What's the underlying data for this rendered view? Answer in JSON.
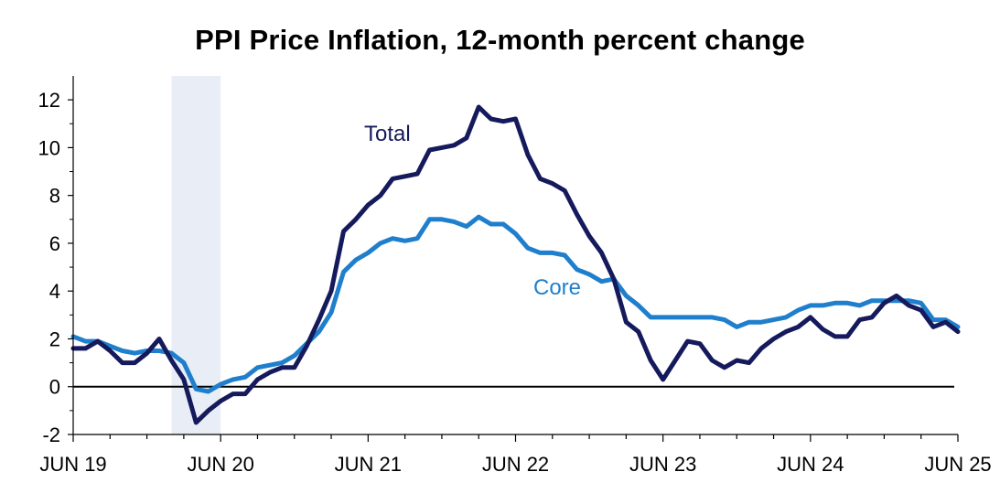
{
  "chart_data": {
    "type": "line",
    "title": "PPI Price Inflation, 12-month percent change",
    "xlabel": "",
    "ylabel": "",
    "ylim": [
      -2,
      13
    ],
    "yticks": [
      -2,
      0,
      2,
      4,
      6,
      8,
      10,
      12
    ],
    "x_start": "2019-06",
    "x_end": "2025-06",
    "xtick_labels": [
      "JUN 19",
      "JUN 20",
      "JUN 21",
      "JUN 22",
      "JUN 23",
      "JUN 24",
      "JUN 25"
    ],
    "recession_shading": {
      "start_index": 8,
      "end_index": 12
    },
    "colors": {
      "Total": "#151a5c",
      "Core": "#1f7fcc",
      "recession": "#e8edf6",
      "zero_line": "#000000"
    },
    "series": [
      {
        "name": "Total",
        "label": "Total",
        "values": [
          1.6,
          1.6,
          1.9,
          1.5,
          1.0,
          1.0,
          1.4,
          2.0,
          1.1,
          0.3,
          -1.5,
          -1.0,
          -0.6,
          -0.3,
          -0.3,
          0.3,
          0.6,
          0.8,
          0.8,
          1.7,
          2.8,
          4.0,
          6.5,
          7.0,
          7.6,
          8.0,
          8.7,
          8.8,
          8.9,
          9.9,
          10.0,
          10.1,
          10.4,
          11.7,
          11.2,
          11.1,
          11.2,
          9.7,
          8.7,
          8.5,
          8.2,
          7.2,
          6.3,
          5.6,
          4.5,
          2.7,
          2.3,
          1.1,
          0.3,
          1.1,
          1.9,
          1.8,
          1.1,
          0.8,
          1.1,
          1.0,
          1.6,
          2.0,
          2.3,
          2.5,
          2.9,
          2.4,
          2.1,
          2.1,
          2.8,
          2.9,
          3.5,
          3.8,
          3.4,
          3.2,
          2.5,
          2.7,
          2.3
        ]
      },
      {
        "name": "Core",
        "label": "Core",
        "values": [
          2.1,
          1.9,
          1.9,
          1.7,
          1.5,
          1.4,
          1.5,
          1.5,
          1.4,
          1.0,
          -0.1,
          -0.2,
          0.1,
          0.3,
          0.4,
          0.8,
          0.9,
          1.0,
          1.3,
          1.8,
          2.3,
          3.1,
          4.8,
          5.3,
          5.6,
          6.0,
          6.2,
          6.1,
          6.2,
          7.0,
          7.0,
          6.9,
          6.7,
          7.1,
          6.8,
          6.8,
          6.4,
          5.8,
          5.6,
          5.6,
          5.5,
          4.9,
          4.7,
          4.4,
          4.5,
          3.8,
          3.4,
          2.9,
          2.9,
          2.9,
          2.9,
          2.9,
          2.9,
          2.8,
          2.5,
          2.7,
          2.7,
          2.8,
          2.9,
          3.2,
          3.4,
          3.4,
          3.5,
          3.5,
          3.4,
          3.6,
          3.6,
          3.6,
          3.6,
          3.5,
          2.8,
          2.8,
          2.5
        ]
      }
    ]
  }
}
